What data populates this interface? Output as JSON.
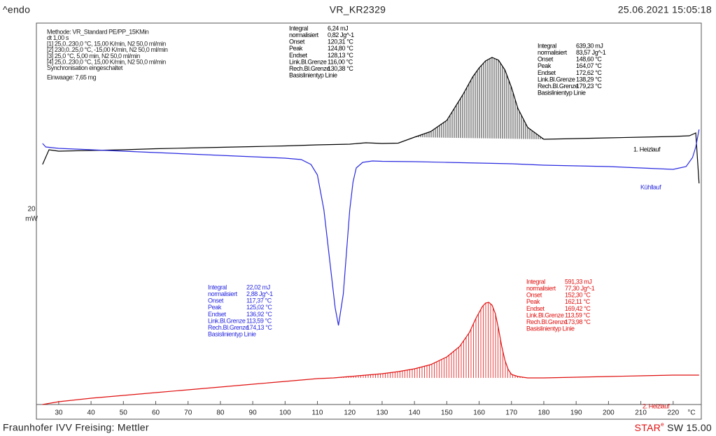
{
  "header": {
    "left": "^endo",
    "center": "VR_KR2329",
    "right": "25.06.2021 15:05:18"
  },
  "footer": {
    "left": "Fraunhofer IVV Freising: Mettler",
    "right": [
      "STAR",
      "e",
      " SW 15.00"
    ]
  },
  "method": [
    "Methode: VR_Standard PE/PP_15KMin",
    "dt 1,00 s",
    "[1] 25,0..230,0 °C, 15,00 K/min, N2 50,0 ml/min",
    "[2] 230,0..25,0 °C, -15,00 K/min, N2 50,0 ml/min",
    "[3] 25,0 °C, 5,00 min, N2 50,0 ml/min",
    "[4] 25,0..230,0 °C, 15,00 K/min, N2 50,0 ml/min",
    "Synchronisation eingeschaltet",
    "Einwaage: 7,65 mg"
  ],
  "chart_data": {
    "type": "line",
    "y_scale": [
      "20",
      "mW"
    ],
    "xlabel": "°C",
    "xlim": [
      23.1,
      228.7
    ],
    "ylim": [
      0,
      113
    ],
    "xticks": [
      30,
      40,
      50,
      60,
      70,
      80,
      90,
      100,
      110,
      120,
      130,
      140,
      150,
      160,
      170,
      180,
      190,
      200,
      210,
      220
    ],
    "series": [
      {
        "name": "1. Heizlauf",
        "color": "#000000",
        "x": [
          25,
          27,
          30,
          40,
          50,
          60,
          70,
          80,
          90,
          100,
          110,
          115,
          120,
          125,
          130,
          135,
          140,
          145,
          150,
          155,
          158,
          160,
          162,
          164,
          166,
          168,
          170,
          172,
          175,
          180,
          190,
          200,
          210,
          220,
          225,
          227,
          228
        ],
        "values": [
          72.6,
          76.8,
          76.4,
          76.6,
          76.8,
          77.1,
          77.3,
          77.5,
          77.7,
          77.9,
          78.2,
          78.3,
          78.4,
          78.8,
          78.6,
          78.7,
          80.4,
          82.0,
          85.2,
          92.6,
          97.6,
          100.2,
          102.2,
          103.2,
          102.4,
          99.6,
          94.6,
          88.6,
          83.2,
          79.8,
          80.0,
          80.2,
          80.4,
          80.6,
          80.8,
          81.6,
          67.2
        ]
      },
      {
        "name": "Kühllauf",
        "color": "#2a2ae0",
        "x": [
          25,
          26,
          30,
          40,
          50,
          60,
          70,
          80,
          90,
          100,
          105,
          108,
          110,
          112,
          114,
          115.5,
          116.5,
          118,
          119,
          120,
          121,
          122,
          124,
          127,
          130,
          140,
          150,
          160,
          170,
          180,
          190,
          200,
          210,
          220,
          224,
          226,
          227,
          228
        ],
        "values": [
          78.6,
          77.6,
          77.2,
          76.8,
          76.4,
          76.0,
          75.6,
          75.2,
          74.8,
          74.4,
          74.0,
          72.6,
          69.6,
          59.6,
          43.6,
          31.6,
          26.6,
          35.6,
          47.6,
          59.6,
          67.6,
          71.6,
          73.2,
          73.6,
          73.5,
          73.4,
          73.2,
          73.0,
          72.8,
          72.4,
          72.2,
          72.0,
          71.6,
          71.2,
          72.0,
          74.6,
          77.6,
          82.6
        ]
      },
      {
        "name": "2. Heizlauf",
        "color": "#e01010",
        "x": [
          25,
          30,
          40,
          50,
          60,
          70,
          80,
          90,
          100,
          110,
          115,
          120,
          125,
          130,
          135,
          140,
          145,
          150,
          154,
          157,
          159,
          161,
          162,
          163,
          164,
          165,
          166,
          167,
          168,
          169,
          170,
          172,
          175,
          180,
          190,
          200,
          210,
          220,
          228
        ],
        "values": [
          4.0,
          4.8,
          5.8,
          6.6,
          7.4,
          8.2,
          9.0,
          9.8,
          10.6,
          11.4,
          11.6,
          12.0,
          12.4,
          12.8,
          13.4,
          14.2,
          15.4,
          17.6,
          20.6,
          24.6,
          28.6,
          32.0,
          33.0,
          33.2,
          32.4,
          30.0,
          25.6,
          20.6,
          16.6,
          14.0,
          12.6,
          12.0,
          11.6,
          11.6,
          11.8,
          12.0,
          12.2,
          12.4,
          12.4
        ]
      }
    ],
    "annotations": [
      {
        "color": "#000000",
        "lines": [
          [
            "Integral",
            "6,24 mJ"
          ],
          [
            " normalisiert",
            "0,82 Jg^-1"
          ],
          [
            "Onset",
            "120,31 °C"
          ],
          [
            "Peak",
            "124,80 °C"
          ],
          [
            "Endset",
            "128,13 °C"
          ],
          [
            "Link.Bl.Grenze",
            "116,00 °C"
          ],
          [
            "Rech.Bl.Grenze",
            "130,38 °C"
          ],
          [
            "Basislinientyp Linie"
          ]
        ]
      },
      {
        "color": "#000000",
        "lines": [
          [
            "Integral",
            "639,30 mJ"
          ],
          [
            " normalisiert",
            "83,57 Jg^-1"
          ],
          [
            "Onset",
            "148,60 °C"
          ],
          [
            "Peak",
            "164,07 °C"
          ],
          [
            "Endset",
            "172,62 °C"
          ],
          [
            "Link.Bl.Grenze",
            "138,29 °C"
          ],
          [
            "Rech.Bl.Grenze",
            "179,23 °C"
          ],
          [
            "Basislinientyp Linie"
          ]
        ]
      },
      {
        "color": "#2a2ae0",
        "lines": [
          [
            "Integral",
            "22,02 mJ"
          ],
          [
            " normalisiert",
            "2,88 Jg^-1"
          ],
          [
            "Onset",
            "117,37 °C"
          ],
          [
            "Peak",
            "125,02 °C"
          ],
          [
            "Endset",
            "136,92 °C"
          ],
          [
            "Link.Bl.Grenze",
            "113,59 °C"
          ],
          [
            "Rech.Bl.Grenze",
            "174,13 °C"
          ],
          [
            "Basislinientyp Linie"
          ]
        ]
      },
      {
        "color": "#e01010",
        "lines": [
          [
            "Integral",
            "591,33 mJ"
          ],
          [
            " normalisiert",
            "77,30 Jg^-1"
          ],
          [
            "Onset",
            "152,30 °C"
          ],
          [
            "Peak",
            "162,11 °C"
          ],
          [
            "Endset",
            "169,42 °C"
          ],
          [
            "Link.Bl.Grenze",
            "113,59 °C"
          ],
          [
            "Rech.Bl.Grenze",
            "173,98 °C"
          ],
          [
            "Basislinientyp Linie"
          ]
        ]
      }
    ]
  }
}
